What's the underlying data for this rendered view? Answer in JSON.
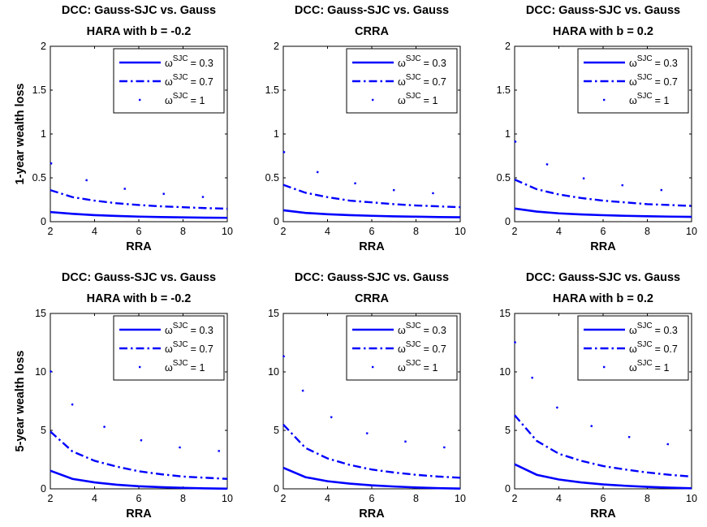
{
  "chart_data": [
    {
      "type": "line",
      "title": [
        "DCC: Gauss-SJC vs. Gauss",
        "HARA with b = -0.2"
      ],
      "xlabel": "RRA",
      "ylabel": "1-year wealth loss",
      "x": [
        2,
        3,
        4,
        5,
        6,
        7,
        8,
        9,
        10
      ],
      "xlim": [
        2,
        10
      ],
      "ylim": [
        0,
        2
      ],
      "xticks": [
        "2",
        "4",
        "6",
        "8",
        "10"
      ],
      "yticks": [
        "0",
        "0.5",
        "1",
        "1.5",
        "2"
      ],
      "legend_position": "top-right",
      "grid": false,
      "series": [
        {
          "name": "ω^SJC = 0.3",
          "style": "solid",
          "values": [
            0.11,
            0.09,
            0.075,
            0.065,
            0.058,
            0.053,
            0.049,
            0.046,
            0.044
          ]
        },
        {
          "name": "ω^SJC = 0.7",
          "style": "dashdot",
          "values": [
            0.36,
            0.28,
            0.24,
            0.21,
            0.19,
            0.175,
            0.165,
            0.155,
            0.148
          ]
        },
        {
          "name": "ω^SJC = 1",
          "style": "dotted",
          "values": [
            0.67,
            0.53,
            0.44,
            0.39,
            0.35,
            0.32,
            0.3,
            0.28,
            0.27
          ]
        }
      ]
    },
    {
      "type": "line",
      "title": [
        "DCC: Gauss-SJC vs. Gauss",
        "CRRA"
      ],
      "xlabel": "RRA",
      "ylabel": "",
      "x": [
        2,
        3,
        4,
        5,
        6,
        7,
        8,
        9,
        10
      ],
      "xlim": [
        2,
        10
      ],
      "ylim": [
        0,
        2
      ],
      "xticks": [
        "2",
        "4",
        "6",
        "8",
        "10"
      ],
      "yticks": [
        "0",
        "0.5",
        "1",
        "1.5",
        "2"
      ],
      "legend_position": "top-right",
      "grid": false,
      "series": [
        {
          "name": "ω^SJC = 0.3",
          "style": "solid",
          "values": [
            0.13,
            0.1,
            0.085,
            0.075,
            0.067,
            0.061,
            0.057,
            0.053,
            0.05
          ]
        },
        {
          "name": "ω^SJC = 0.7",
          "style": "dashdot",
          "values": [
            0.42,
            0.33,
            0.28,
            0.24,
            0.22,
            0.2,
            0.185,
            0.175,
            0.165
          ]
        },
        {
          "name": "ω^SJC = 1",
          "style": "dotted",
          "values": [
            0.8,
            0.62,
            0.52,
            0.45,
            0.4,
            0.36,
            0.34,
            0.32,
            0.3
          ]
        }
      ]
    },
    {
      "type": "line",
      "title": [
        "DCC: Gauss-SJC vs. Gauss",
        "HARA with b = 0.2"
      ],
      "xlabel": "RRA",
      "ylabel": "",
      "x": [
        2,
        3,
        4,
        5,
        6,
        7,
        8,
        9,
        10
      ],
      "xlim": [
        2,
        10
      ],
      "ylim": [
        0,
        2
      ],
      "xticks": [
        "2",
        "4",
        "6",
        "8",
        "10"
      ],
      "yticks": [
        "0",
        "0.5",
        "1",
        "1.5",
        "2"
      ],
      "legend_position": "top-right",
      "grid": false,
      "series": [
        {
          "name": "ω^SJC = 0.3",
          "style": "solid",
          "values": [
            0.15,
            0.115,
            0.095,
            0.083,
            0.074,
            0.067,
            0.062,
            0.058,
            0.055
          ]
        },
        {
          "name": "ω^SJC = 0.7",
          "style": "dashdot",
          "values": [
            0.48,
            0.37,
            0.31,
            0.27,
            0.24,
            0.22,
            0.2,
            0.19,
            0.18
          ]
        },
        {
          "name": "ω^SJC = 1",
          "style": "dotted",
          "values": [
            0.92,
            0.71,
            0.59,
            0.5,
            0.45,
            0.41,
            0.38,
            0.35,
            0.33
          ]
        }
      ]
    },
    {
      "type": "line",
      "title": [
        "DCC: Gauss-SJC vs. Gauss",
        "HARA with b = -0.2"
      ],
      "xlabel": "RRA",
      "ylabel": "5-year wealth loss",
      "x": [
        2,
        3,
        4,
        5,
        6,
        7,
        8,
        9,
        10
      ],
      "xlim": [
        2,
        10
      ],
      "ylim": [
        0,
        15
      ],
      "xticks": [
        "2",
        "4",
        "6",
        "8",
        "10"
      ],
      "yticks": [
        "0",
        "5",
        "10",
        "15"
      ],
      "legend_position": "top-right",
      "grid": false,
      "series": [
        {
          "name": "ω^SJC = 0.3",
          "style": "solid",
          "values": [
            1.55,
            0.85,
            0.55,
            0.35,
            0.22,
            0.14,
            0.08,
            0.04,
            0.01
          ]
        },
        {
          "name": "ω^SJC = 0.7",
          "style": "dashdot",
          "values": [
            4.9,
            3.2,
            2.4,
            1.9,
            1.5,
            1.25,
            1.05,
            0.95,
            0.85
          ]
        },
        {
          "name": "ω^SJC = 1",
          "style": "dotted",
          "values": [
            10.1,
            7.2,
            5.7,
            4.8,
            4.2,
            3.8,
            3.5,
            3.3,
            3.2
          ]
        }
      ]
    },
    {
      "type": "line",
      "title": [
        "DCC: Gauss-SJC vs. Gauss",
        "CRRA"
      ],
      "xlabel": "RRA",
      "ylabel": "",
      "x": [
        2,
        3,
        4,
        5,
        6,
        7,
        8,
        9,
        10
      ],
      "xlim": [
        2,
        10
      ],
      "ylim": [
        0,
        15
      ],
      "xticks": [
        "2",
        "4",
        "6",
        "8",
        "10"
      ],
      "yticks": [
        "0",
        "5",
        "10",
        "15"
      ],
      "legend_position": "top-right",
      "grid": false,
      "series": [
        {
          "name": "ω^SJC = 0.3",
          "style": "solid",
          "values": [
            1.8,
            1.0,
            0.65,
            0.45,
            0.3,
            0.2,
            0.12,
            0.06,
            0.02
          ]
        },
        {
          "name": "ω^SJC = 0.7",
          "style": "dashdot",
          "values": [
            5.5,
            3.5,
            2.6,
            2.05,
            1.65,
            1.4,
            1.2,
            1.05,
            0.95
          ]
        },
        {
          "name": "ω^SJC = 1",
          "style": "dotted",
          "values": [
            11.4,
            8.0,
            6.3,
            5.3,
            4.6,
            4.2,
            3.9,
            3.6,
            3.4
          ]
        }
      ]
    },
    {
      "type": "line",
      "title": [
        "DCC: Gauss-SJC vs. Gauss",
        "HARA with b = 0.2"
      ],
      "xlabel": "RRA",
      "ylabel": "",
      "x": [
        2,
        3,
        4,
        5,
        6,
        7,
        8,
        9,
        10
      ],
      "xlim": [
        2,
        10
      ],
      "ylim": [
        0,
        15
      ],
      "xticks": [
        "2",
        "4",
        "6",
        "8",
        "10"
      ],
      "yticks": [
        "0",
        "5",
        "10",
        "15"
      ],
      "legend_position": "top-right",
      "grid": false,
      "series": [
        {
          "name": "ω^SJC = 0.3",
          "style": "solid",
          "values": [
            2.1,
            1.2,
            0.8,
            0.55,
            0.38,
            0.26,
            0.17,
            0.1,
            0.05
          ]
        },
        {
          "name": "ω^SJC = 0.7",
          "style": "dashdot",
          "values": [
            6.3,
            4.1,
            3.0,
            2.4,
            1.95,
            1.65,
            1.4,
            1.2,
            1.05
          ]
        },
        {
          "name": "ω^SJC = 1",
          "style": "dotted",
          "values": [
            12.6,
            8.7,
            6.8,
            5.7,
            5.0,
            4.5,
            4.1,
            3.8,
            3.6
          ]
        }
      ]
    }
  ],
  "legend": {
    "omega": "ω",
    "superscript": "SJC",
    "labels": [
      "= 0.3",
      "= 0.7",
      "= 1"
    ]
  },
  "colors": {
    "series": "#0000ff",
    "axes": "#000000",
    "background": "#ffffff"
  }
}
